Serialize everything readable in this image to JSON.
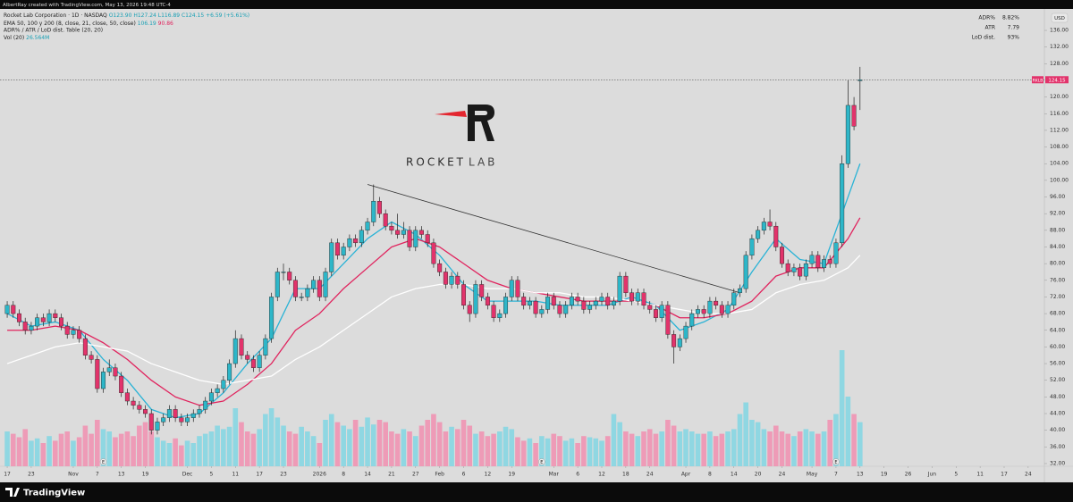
{
  "attribution": "AlbertRay created with TradingView.com, May 13, 2026 19:48 UTC-4",
  "footer": "TradingView",
  "logo": {
    "word1": "ROCKET",
    "word2": "LAB"
  },
  "chart_data": {
    "type": "candlestick",
    "title": "Rocket Lab Corporation · 1D · NASDAQ",
    "ohlc_text": "O123.90 H127.24 L116.89 C124.15 +6.59 (+5.61%)",
    "ema_legend": {
      "text": "EMA 50, 100 y 200 (8, close, 21, close, 50, close)",
      "values": [
        "106.19",
        "90.86"
      ]
    },
    "table_legend": "ADR% / ATR / LoD dist. Table (20, 20)",
    "currency": "USD",
    "up_color": "#2db6c8",
    "down_color": "#e2336b",
    "ohlc": [
      [
        68,
        71,
        67,
        70
      ],
      [
        70,
        71,
        67,
        68
      ],
      [
        68,
        69,
        65,
        66
      ],
      [
        66,
        67,
        63,
        64
      ],
      [
        64,
        66,
        63,
        65
      ],
      [
        65,
        68,
        64,
        67
      ],
      [
        67,
        68,
        65,
        66
      ],
      [
        66,
        69,
        65,
        68
      ],
      [
        68,
        69,
        66,
        67
      ],
      [
        67,
        68,
        64,
        65
      ],
      [
        65,
        66,
        62,
        63
      ],
      [
        63,
        65,
        62,
        64
      ],
      [
        64,
        65,
        61,
        62
      ],
      [
        62,
        63,
        57,
        58
      ],
      [
        58,
        59,
        56,
        57
      ],
      [
        57,
        58,
        49,
        50
      ],
      [
        50,
        55,
        49,
        54
      ],
      [
        54,
        57,
        53,
        55
      ],
      [
        55,
        56,
        52,
        53
      ],
      [
        53,
        54,
        48,
        49
      ],
      [
        49,
        50,
        46,
        47
      ],
      [
        47,
        48,
        45,
        46
      ],
      [
        46,
        47,
        44,
        45
      ],
      [
        45,
        46,
        43,
        44
      ],
      [
        44,
        45,
        39,
        40
      ],
      [
        40,
        43,
        39,
        42
      ],
      [
        42,
        44,
        41,
        43
      ],
      [
        43,
        46,
        42,
        45
      ],
      [
        45,
        46,
        42,
        43
      ],
      [
        43,
        44,
        41,
        42
      ],
      [
        42,
        44,
        41,
        43
      ],
      [
        43,
        45,
        42,
        44
      ],
      [
        44,
        46,
        43,
        45
      ],
      [
        45,
        48,
        44,
        47
      ],
      [
        47,
        50,
        46,
        49
      ],
      [
        49,
        51,
        48,
        50
      ],
      [
        50,
        53,
        49,
        52
      ],
      [
        52,
        57,
        51,
        56
      ],
      [
        56,
        64,
        55,
        62
      ],
      [
        62,
        63,
        57,
        58
      ],
      [
        58,
        59,
        56,
        57
      ],
      [
        57,
        58,
        54,
        55
      ],
      [
        55,
        59,
        54,
        58
      ],
      [
        58,
        63,
        57,
        62
      ],
      [
        62,
        73,
        61,
        72
      ],
      [
        72,
        79,
        71,
        78
      ],
      [
        78,
        80,
        76,
        78
      ],
      [
        78,
        79,
        75,
        76
      ],
      [
        76,
        77,
        71,
        72
      ],
      [
        72,
        73,
        71,
        72
      ],
      [
        72,
        75,
        71,
        74
      ],
      [
        74,
        77,
        73,
        76
      ],
      [
        76,
        77,
        71,
        72
      ],
      [
        72,
        79,
        71,
        78
      ],
      [
        78,
        86,
        77,
        85
      ],
      [
        85,
        86,
        81,
        82
      ],
      [
        82,
        85,
        81,
        84
      ],
      [
        84,
        87,
        83,
        86
      ],
      [
        86,
        87,
        84,
        85
      ],
      [
        85,
        89,
        84,
        88
      ],
      [
        88,
        91,
        87,
        90
      ],
      [
        90,
        99,
        89,
        95
      ],
      [
        95,
        96,
        91,
        92
      ],
      [
        92,
        93,
        88,
        89
      ],
      [
        89,
        90,
        87,
        88
      ],
      [
        88,
        92,
        86,
        87
      ],
      [
        87,
        90,
        86,
        88
      ],
      [
        88,
        89,
        83,
        84
      ],
      [
        84,
        89,
        83,
        88
      ],
      [
        88,
        89,
        86,
        87
      ],
      [
        87,
        88,
        84,
        85
      ],
      [
        85,
        86,
        79,
        80
      ],
      [
        80,
        81,
        77,
        78
      ],
      [
        78,
        79,
        74,
        75
      ],
      [
        75,
        78,
        74,
        77
      ],
      [
        77,
        78,
        74,
        75
      ],
      [
        75,
        76,
        69,
        70
      ],
      [
        70,
        71,
        66,
        68
      ],
      [
        68,
        76,
        67,
        75
      ],
      [
        75,
        76,
        71,
        72
      ],
      [
        72,
        73,
        69,
        70
      ],
      [
        70,
        71,
        66,
        67
      ],
      [
        67,
        69,
        66,
        68
      ],
      [
        68,
        73,
        67,
        72
      ],
      [
        72,
        77,
        71,
        76
      ],
      [
        76,
        77,
        71,
        72
      ],
      [
        72,
        73,
        69,
        70
      ],
      [
        70,
        72,
        69,
        71
      ],
      [
        71,
        72,
        67,
        68
      ],
      [
        68,
        70,
        67,
        69
      ],
      [
        69,
        73,
        68,
        72
      ],
      [
        72,
        73,
        69,
        70
      ],
      [
        70,
        71,
        67,
        68
      ],
      [
        68,
        71,
        67,
        70
      ],
      [
        70,
        73,
        69,
        72
      ],
      [
        72,
        73,
        70,
        71
      ],
      [
        71,
        72,
        68,
        69
      ],
      [
        69,
        71,
        68,
        70
      ],
      [
        70,
        72,
        69,
        71
      ],
      [
        71,
        73,
        70,
        72
      ],
      [
        72,
        73,
        69,
        70
      ],
      [
        70,
        72,
        69,
        71
      ],
      [
        71,
        78,
        70,
        77
      ],
      [
        77,
        78,
        72,
        73
      ],
      [
        73,
        74,
        70,
        71
      ],
      [
        71,
        74,
        70,
        73
      ],
      [
        73,
        74,
        69,
        70
      ],
      [
        70,
        71,
        68,
        69
      ],
      [
        69,
        70,
        66,
        67
      ],
      [
        67,
        71,
        66,
        70
      ],
      [
        70,
        71,
        62,
        63
      ],
      [
        63,
        64,
        56,
        60
      ],
      [
        60,
        63,
        59,
        62
      ],
      [
        62,
        66,
        61,
        65
      ],
      [
        65,
        69,
        64,
        68
      ],
      [
        68,
        70,
        67,
        69
      ],
      [
        69,
        70,
        67,
        68
      ],
      [
        68,
        72,
        67,
        71
      ],
      [
        71,
        72,
        69,
        70
      ],
      [
        70,
        71,
        67,
        68
      ],
      [
        68,
        71,
        67,
        70
      ],
      [
        70,
        74,
        69,
        73
      ],
      [
        73,
        75,
        72,
        74
      ],
      [
        74,
        83,
        73,
        82
      ],
      [
        82,
        87,
        81,
        86
      ],
      [
        86,
        89,
        85,
        88
      ],
      [
        88,
        91,
        87,
        90
      ],
      [
        90,
        93,
        88,
        89
      ],
      [
        89,
        90,
        83,
        84
      ],
      [
        84,
        85,
        79,
        80
      ],
      [
        80,
        81,
        77,
        78
      ],
      [
        78,
        80,
        77,
        79
      ],
      [
        79,
        80,
        76,
        77
      ],
      [
        77,
        81,
        76,
        80
      ],
      [
        80,
        83,
        79,
        82
      ],
      [
        82,
        83,
        78,
        79
      ],
      [
        79,
        82,
        78,
        81
      ],
      [
        81,
        82,
        79,
        80
      ],
      [
        80,
        86,
        79,
        85
      ],
      [
        85,
        106,
        84,
        104
      ],
      [
        104,
        124,
        103,
        118
      ],
      [
        118,
        120,
        112,
        113
      ],
      [
        123.9,
        127.24,
        116.89,
        124.15
      ]
    ],
    "volume": {
      "name": "Vol (20)",
      "value_label": "26.564M",
      "up_color": "#86d6e2",
      "down_color": "#f093b2",
      "values": [
        30,
        28,
        25,
        32,
        22,
        24,
        20,
        26,
        22,
        28,
        30,
        22,
        25,
        35,
        28,
        40,
        32,
        30,
        25,
        28,
        30,
        26,
        35,
        38,
        30,
        25,
        22,
        20,
        24,
        18,
        22,
        20,
        26,
        28,
        30,
        35,
        32,
        34,
        50,
        38,
        30,
        28,
        32,
        45,
        50,
        42,
        35,
        30,
        28,
        34,
        30,
        26,
        20,
        40,
        45,
        38,
        35,
        32,
        40,
        34,
        42,
        36,
        40,
        38,
        30,
        28,
        32,
        30,
        26,
        35,
        40,
        45,
        38,
        30,
        34,
        32,
        40,
        35,
        28,
        30,
        26,
        28,
        30,
        34,
        32,
        25,
        22,
        24,
        20,
        26,
        24,
        28,
        26,
        22,
        24,
        20,
        26,
        25,
        24,
        22,
        26,
        45,
        38,
        30,
        28,
        26,
        30,
        32,
        28,
        30,
        40,
        35,
        30,
        32,
        30,
        28,
        28,
        30,
        26,
        28,
        30,
        32,
        45,
        55,
        40,
        38,
        32,
        30,
        35,
        30,
        28,
        26,
        30,
        32,
        30,
        28,
        30,
        40,
        45,
        100,
        60,
        45,
        38
      ]
    },
    "ema": [
      {
        "color": "#2ab3d6",
        "x": [
          0,
          4,
          8,
          12,
          16,
          20,
          24,
          28,
          32,
          36,
          40,
          44,
          48,
          52,
          56,
          60,
          64,
          68,
          72,
          76,
          80,
          84,
          88,
          92,
          96,
          100,
          104,
          108,
          112,
          116,
          120,
          124,
          128,
          132,
          136,
          140,
          142
        ],
        "values": [
          68,
          65,
          66,
          64,
          57,
          52,
          45,
          43,
          44,
          49,
          56,
          62,
          74,
          74,
          80,
          86,
          90,
          87,
          82,
          75,
          71,
          71,
          71,
          70,
          70,
          70,
          72,
          70,
          64,
          66,
          69,
          78,
          86,
          81,
          80,
          96,
          104
        ]
      },
      {
        "color": "#e0245e",
        "x": [
          0,
          4,
          8,
          12,
          16,
          20,
          24,
          28,
          32,
          36,
          40,
          44,
          48,
          52,
          56,
          60,
          64,
          68,
          72,
          76,
          80,
          84,
          88,
          92,
          96,
          100,
          104,
          108,
          112,
          116,
          120,
          124,
          128,
          132,
          136,
          140,
          142
        ],
        "values": [
          64,
          64,
          65,
          64,
          61,
          57,
          52,
          48,
          46,
          47,
          51,
          56,
          64,
          68,
          74,
          79,
          84,
          86,
          84,
          80,
          76,
          74,
          73,
          72,
          71,
          71,
          71,
          70,
          67,
          67,
          68,
          71,
          77,
          79,
          79,
          86,
          91
        ]
      },
      {
        "color": "#ffffff",
        "x": [
          0,
          4,
          8,
          12,
          16,
          20,
          24,
          28,
          32,
          36,
          40,
          44,
          48,
          52,
          56,
          60,
          64,
          68,
          72,
          76,
          80,
          84,
          88,
          92,
          96,
          100,
          104,
          108,
          112,
          116,
          120,
          124,
          128,
          132,
          136,
          140,
          142
        ],
        "values": [
          56,
          58,
          60,
          61,
          60,
          59,
          56,
          54,
          52,
          51,
          52,
          53,
          57,
          60,
          64,
          68,
          72,
          74,
          75,
          75,
          74,
          74,
          73,
          73,
          72,
          72,
          71,
          70,
          69,
          68,
          68,
          69,
          73,
          75,
          76,
          79,
          82
        ]
      }
    ],
    "trendline": {
      "x": [
        60,
        122
      ],
      "values": [
        99,
        73
      ]
    },
    "last_price": {
      "symbol": "RKLB",
      "value": 124.15,
      "label": "124.15",
      "color": "#e2336b"
    },
    "events": [
      {
        "x": 16,
        "label": "E"
      },
      {
        "x": 89,
        "label": "E"
      },
      {
        "x": 138,
        "label": "E"
      }
    ],
    "table": [
      [
        "ADR%",
        "8.82%"
      ],
      [
        "ATR",
        "7.79"
      ],
      [
        "LoD dist.",
        "93%"
      ]
    ],
    "xlim": [
      -1.2,
      172.7
    ],
    "ylim": [
      31.35,
      141.15
    ],
    "yticks": [
      {
        "value": 32,
        "label": "32.00"
      },
      {
        "value": 36,
        "label": "36.00"
      },
      {
        "value": 40,
        "label": "40.00"
      },
      {
        "value": 44,
        "label": "44.00"
      },
      {
        "value": 48,
        "label": "48.00"
      },
      {
        "value": 52,
        "label": "52.00"
      },
      {
        "value": 56,
        "label": "56.00"
      },
      {
        "value": 60,
        "label": "60.00"
      },
      {
        "value": 64,
        "label": "64.00"
      },
      {
        "value": 68,
        "label": "68.00"
      },
      {
        "value": 72,
        "label": "72.00"
      },
      {
        "value": 76,
        "label": "76.00"
      },
      {
        "value": 80,
        "label": "80.00"
      },
      {
        "value": 84,
        "label": "84.00"
      },
      {
        "value": 88,
        "label": "88.00"
      },
      {
        "value": 92,
        "label": "92.00"
      },
      {
        "value": 96,
        "label": "96.00"
      },
      {
        "value": 100,
        "label": "100.00"
      },
      {
        "value": 104,
        "label": "104.00"
      },
      {
        "value": 108,
        "label": "108.00"
      },
      {
        "value": 112,
        "label": "112.00"
      },
      {
        "value": 116,
        "label": "116.00"
      },
      {
        "value": 120,
        "label": "120.00"
      },
      {
        "value": 128,
        "label": "128.00"
      },
      {
        "value": 132,
        "label": "132.00"
      },
      {
        "value": 136,
        "label": "136.00"
      }
    ],
    "xticks": [
      {
        "value": 0,
        "label": "17"
      },
      {
        "value": 4,
        "label": "23"
      },
      {
        "value": 11,
        "label": "Nov"
      },
      {
        "value": 15,
        "label": "7"
      },
      {
        "value": 19,
        "label": "13"
      },
      {
        "value": 23,
        "label": "19"
      },
      {
        "value": 30,
        "label": "Dec"
      },
      {
        "value": 34,
        "label": "5"
      },
      {
        "value": 38,
        "label": "11"
      },
      {
        "value": 42,
        "label": "17"
      },
      {
        "value": 46,
        "label": "23"
      },
      {
        "value": 52,
        "label": "2026"
      },
      {
        "value": 56,
        "label": "8"
      },
      {
        "value": 60,
        "label": "14"
      },
      {
        "value": 64,
        "label": "21"
      },
      {
        "value": 68,
        "label": "27"
      },
      {
        "value": 72,
        "label": "Feb"
      },
      {
        "value": 76,
        "label": "6"
      },
      {
        "value": 80,
        "label": "12"
      },
      {
        "value": 84,
        "label": "19"
      },
      {
        "value": 91,
        "label": "Mar"
      },
      {
        "value": 95,
        "label": "6"
      },
      {
        "value": 99,
        "label": "12"
      },
      {
        "value": 103,
        "label": "18"
      },
      {
        "value": 107,
        "label": "24"
      },
      {
        "value": 113,
        "label": "Apr"
      },
      {
        "value": 117,
        "label": "8"
      },
      {
        "value": 121,
        "label": "14"
      },
      {
        "value": 125,
        "label": "20"
      },
      {
        "value": 129,
        "label": "24"
      },
      {
        "value": 134,
        "label": "May"
      },
      {
        "value": 138,
        "label": "7"
      },
      {
        "value": 142,
        "label": "13"
      },
      {
        "value": 146,
        "label": "19"
      },
      {
        "value": 150,
        "label": "26"
      },
      {
        "value": 154,
        "label": "Jun"
      },
      {
        "value": 158,
        "label": "5"
      },
      {
        "value": 162,
        "label": "11"
      },
      {
        "value": 166,
        "label": "17"
      },
      {
        "value": 170,
        "label": "24"
      }
    ]
  }
}
